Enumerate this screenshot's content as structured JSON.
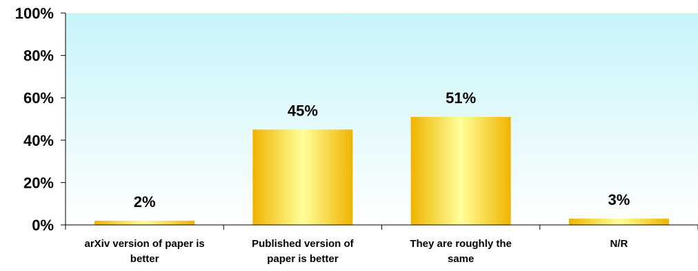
{
  "chart_data": {
    "type": "bar",
    "title": "",
    "xlabel": "",
    "ylabel": "",
    "ylim": [
      0,
      100
    ],
    "yticks": [
      "0%",
      "20%",
      "40%",
      "60%",
      "80%",
      "100%"
    ],
    "yticks_values": [
      0,
      20,
      40,
      60,
      80,
      100
    ],
    "categories": [
      [
        "arXiv version of paper is",
        "better"
      ],
      [
        "Published version of",
        "paper is better"
      ],
      [
        "They are roughly the",
        "same"
      ],
      [
        "N/R"
      ]
    ],
    "values": [
      2,
      45,
      51,
      3
    ],
    "data_labels": [
      "2%",
      "45%",
      "51%",
      "3%"
    ],
    "grid": false,
    "legend": "none",
    "colors": {
      "plot_bg_top": "#c6f4f9",
      "plot_bg_bottom": "#ffffff",
      "bar_edge": "#f0b400",
      "bar_center": "#ffff99",
      "axis": "#000000"
    }
  }
}
